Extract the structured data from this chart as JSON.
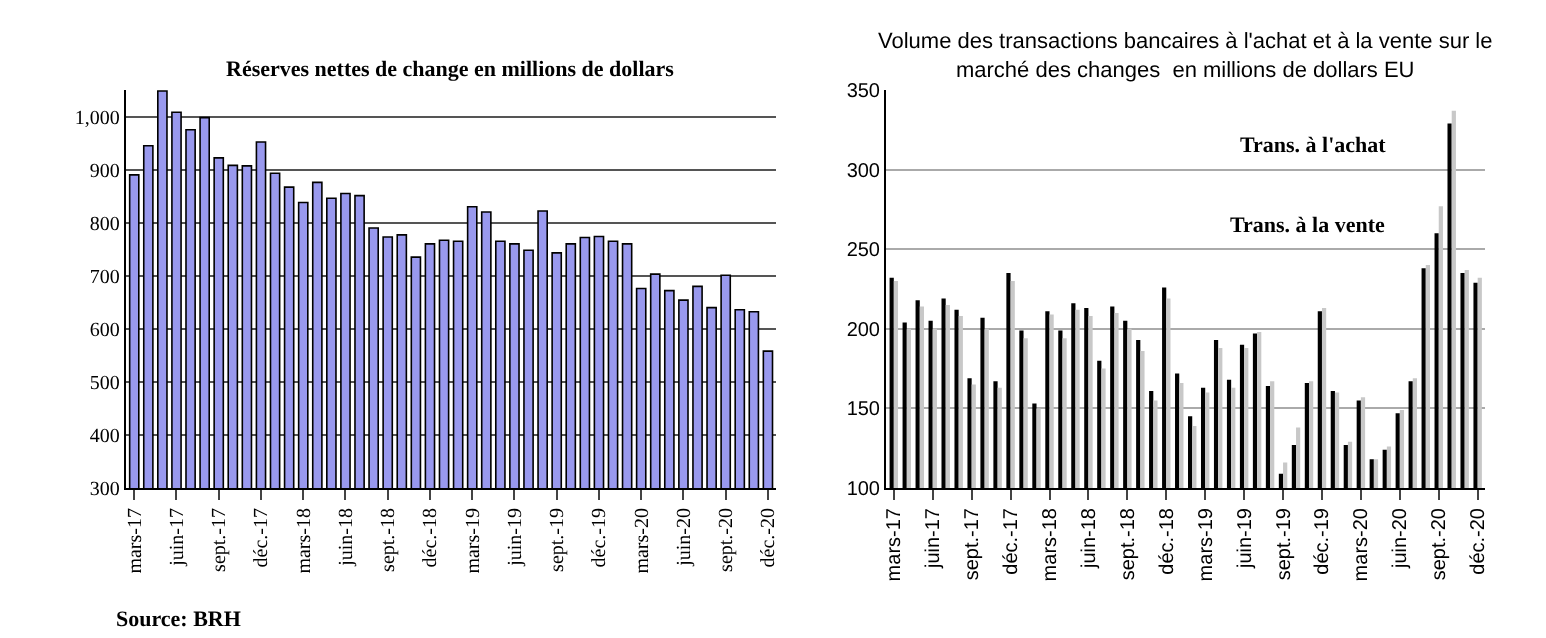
{
  "chart_data": [
    {
      "type": "bar",
      "title": "Réserves nettes de change en millions de dollars",
      "categories": [
        "mars-17",
        null,
        null,
        "juin-17",
        null,
        null,
        "sept.-17",
        null,
        null,
        "déc.-17",
        null,
        null,
        "mars-18",
        null,
        null,
        "juin-18",
        null,
        null,
        "sept.-18",
        null,
        null,
        "déc.-18",
        null,
        null,
        "mars-19",
        null,
        null,
        "juin-19",
        null,
        null,
        "sept.-19",
        null,
        null,
        "déc.-19",
        null,
        null,
        "mars-20",
        null,
        null,
        "juin-20",
        null,
        null,
        "sept.-20",
        null,
        null,
        "déc.-20"
      ],
      "series": [
        {
          "color": "#9999ee",
          "values": [
            890,
            945,
            1048,
            1008,
            975,
            998,
            922,
            908,
            907,
            952,
            893,
            867,
            838,
            876,
            846,
            855,
            851,
            790,
            773,
            777,
            735,
            760,
            767,
            765,
            830,
            820,
            765,
            760,
            748,
            822,
            743,
            760,
            772,
            774,
            765,
            760,
            676,
            703,
            672,
            654,
            680,
            640,
            701,
            636,
            632,
            558
          ]
        }
      ],
      "ylim": [
        300,
        1050
      ],
      "yticks": [
        300,
        400,
        500,
        600,
        700,
        800,
        900,
        {
          "value": 1000,
          "label": "1,000"
        }
      ],
      "grid": "y",
      "annotations": [
        "Source: BRH"
      ]
    },
    {
      "type": "bar",
      "title": "Volume des transactions bancaires à l'achat et à la vente sur le\nmarché des changes  en millions de dollars EU",
      "categories": [
        "mars-17",
        null,
        null,
        "juin-17",
        null,
        null,
        "sept.-17",
        null,
        null,
        "déc.-17",
        null,
        null,
        "mars-18",
        null,
        null,
        "juin-18",
        null,
        null,
        "sept.-18",
        null,
        null,
        "déc.-18",
        null,
        null,
        "mars-19",
        null,
        null,
        "juin-19",
        null,
        null,
        "sept.-19",
        null,
        null,
        "déc.-19",
        null,
        null,
        "mars-20",
        null,
        null,
        "juin-20",
        null,
        null,
        "sept.-20",
        null,
        null,
        "déc.-20"
      ],
      "series": [
        {
          "color": "#000000",
          "values": [
            232,
            204,
            218,
            205,
            219,
            212,
            169,
            207,
            167,
            235,
            199,
            153,
            211,
            199,
            216,
            213,
            180,
            214,
            205,
            193,
            161,
            226,
            172,
            145,
            163,
            193,
            168,
            190,
            197,
            164,
            109,
            127,
            166,
            211,
            161,
            127,
            155,
            118,
            124,
            147,
            167,
            238,
            260,
            329,
            235,
            229
          ]
        },
        {
          "color": "#c8c8c8",
          "values": [
            230,
            200,
            214,
            200,
            215,
            208,
            165,
            200,
            163,
            230,
            194,
            150,
            209,
            194,
            212,
            208,
            175,
            210,
            200,
            186,
            155,
            219,
            166,
            139,
            160,
            188,
            163,
            188,
            198,
            167,
            116,
            138,
            167,
            213,
            160,
            129,
            157,
            118,
            126,
            149,
            169,
            240,
            277,
            337,
            237,
            232
          ]
        }
      ],
      "ylim": [
        100,
        350
      ],
      "yticks": [
        100,
        150,
        200,
        250,
        300,
        350
      ],
      "grid": "y",
      "annotations": [
        "Trans. à l'achat",
        "Trans. à la vente"
      ]
    }
  ]
}
